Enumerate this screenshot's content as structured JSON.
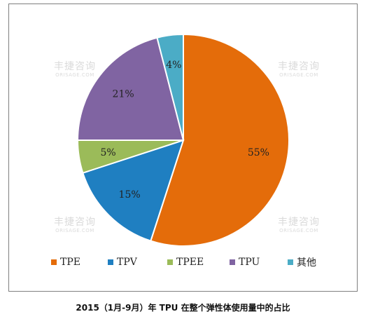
{
  "chart_data": {
    "type": "pie",
    "title": "2015（1月-9月）年 TPU 在整个弹性体使用量中的占比",
    "categories": [
      "TPE",
      "TPV",
      "TPEE",
      "TPU",
      "其他"
    ],
    "values": [
      55,
      15,
      5,
      21,
      4
    ],
    "value_labels": [
      "55%",
      "15%",
      "5%",
      "21%",
      "4%"
    ],
    "colors": [
      "#E46C0A",
      "#1F7FC1",
      "#9BBB59",
      "#8064A2",
      "#4BACC6"
    ],
    "start": "12 o'clock",
    "direction": "clockwise",
    "legend_position": "bottom"
  },
  "watermarks": [
    {
      "cn": "丰捷咨询",
      "en": "ORISAGE.COM"
    },
    {
      "cn": "丰捷咨询",
      "en": "ORISAGE.COM"
    },
    {
      "cn": "丰捷咨询",
      "en": "ORISAGE.COM"
    },
    {
      "cn": "丰捷咨询",
      "en": "ORISAGE.COM"
    }
  ]
}
